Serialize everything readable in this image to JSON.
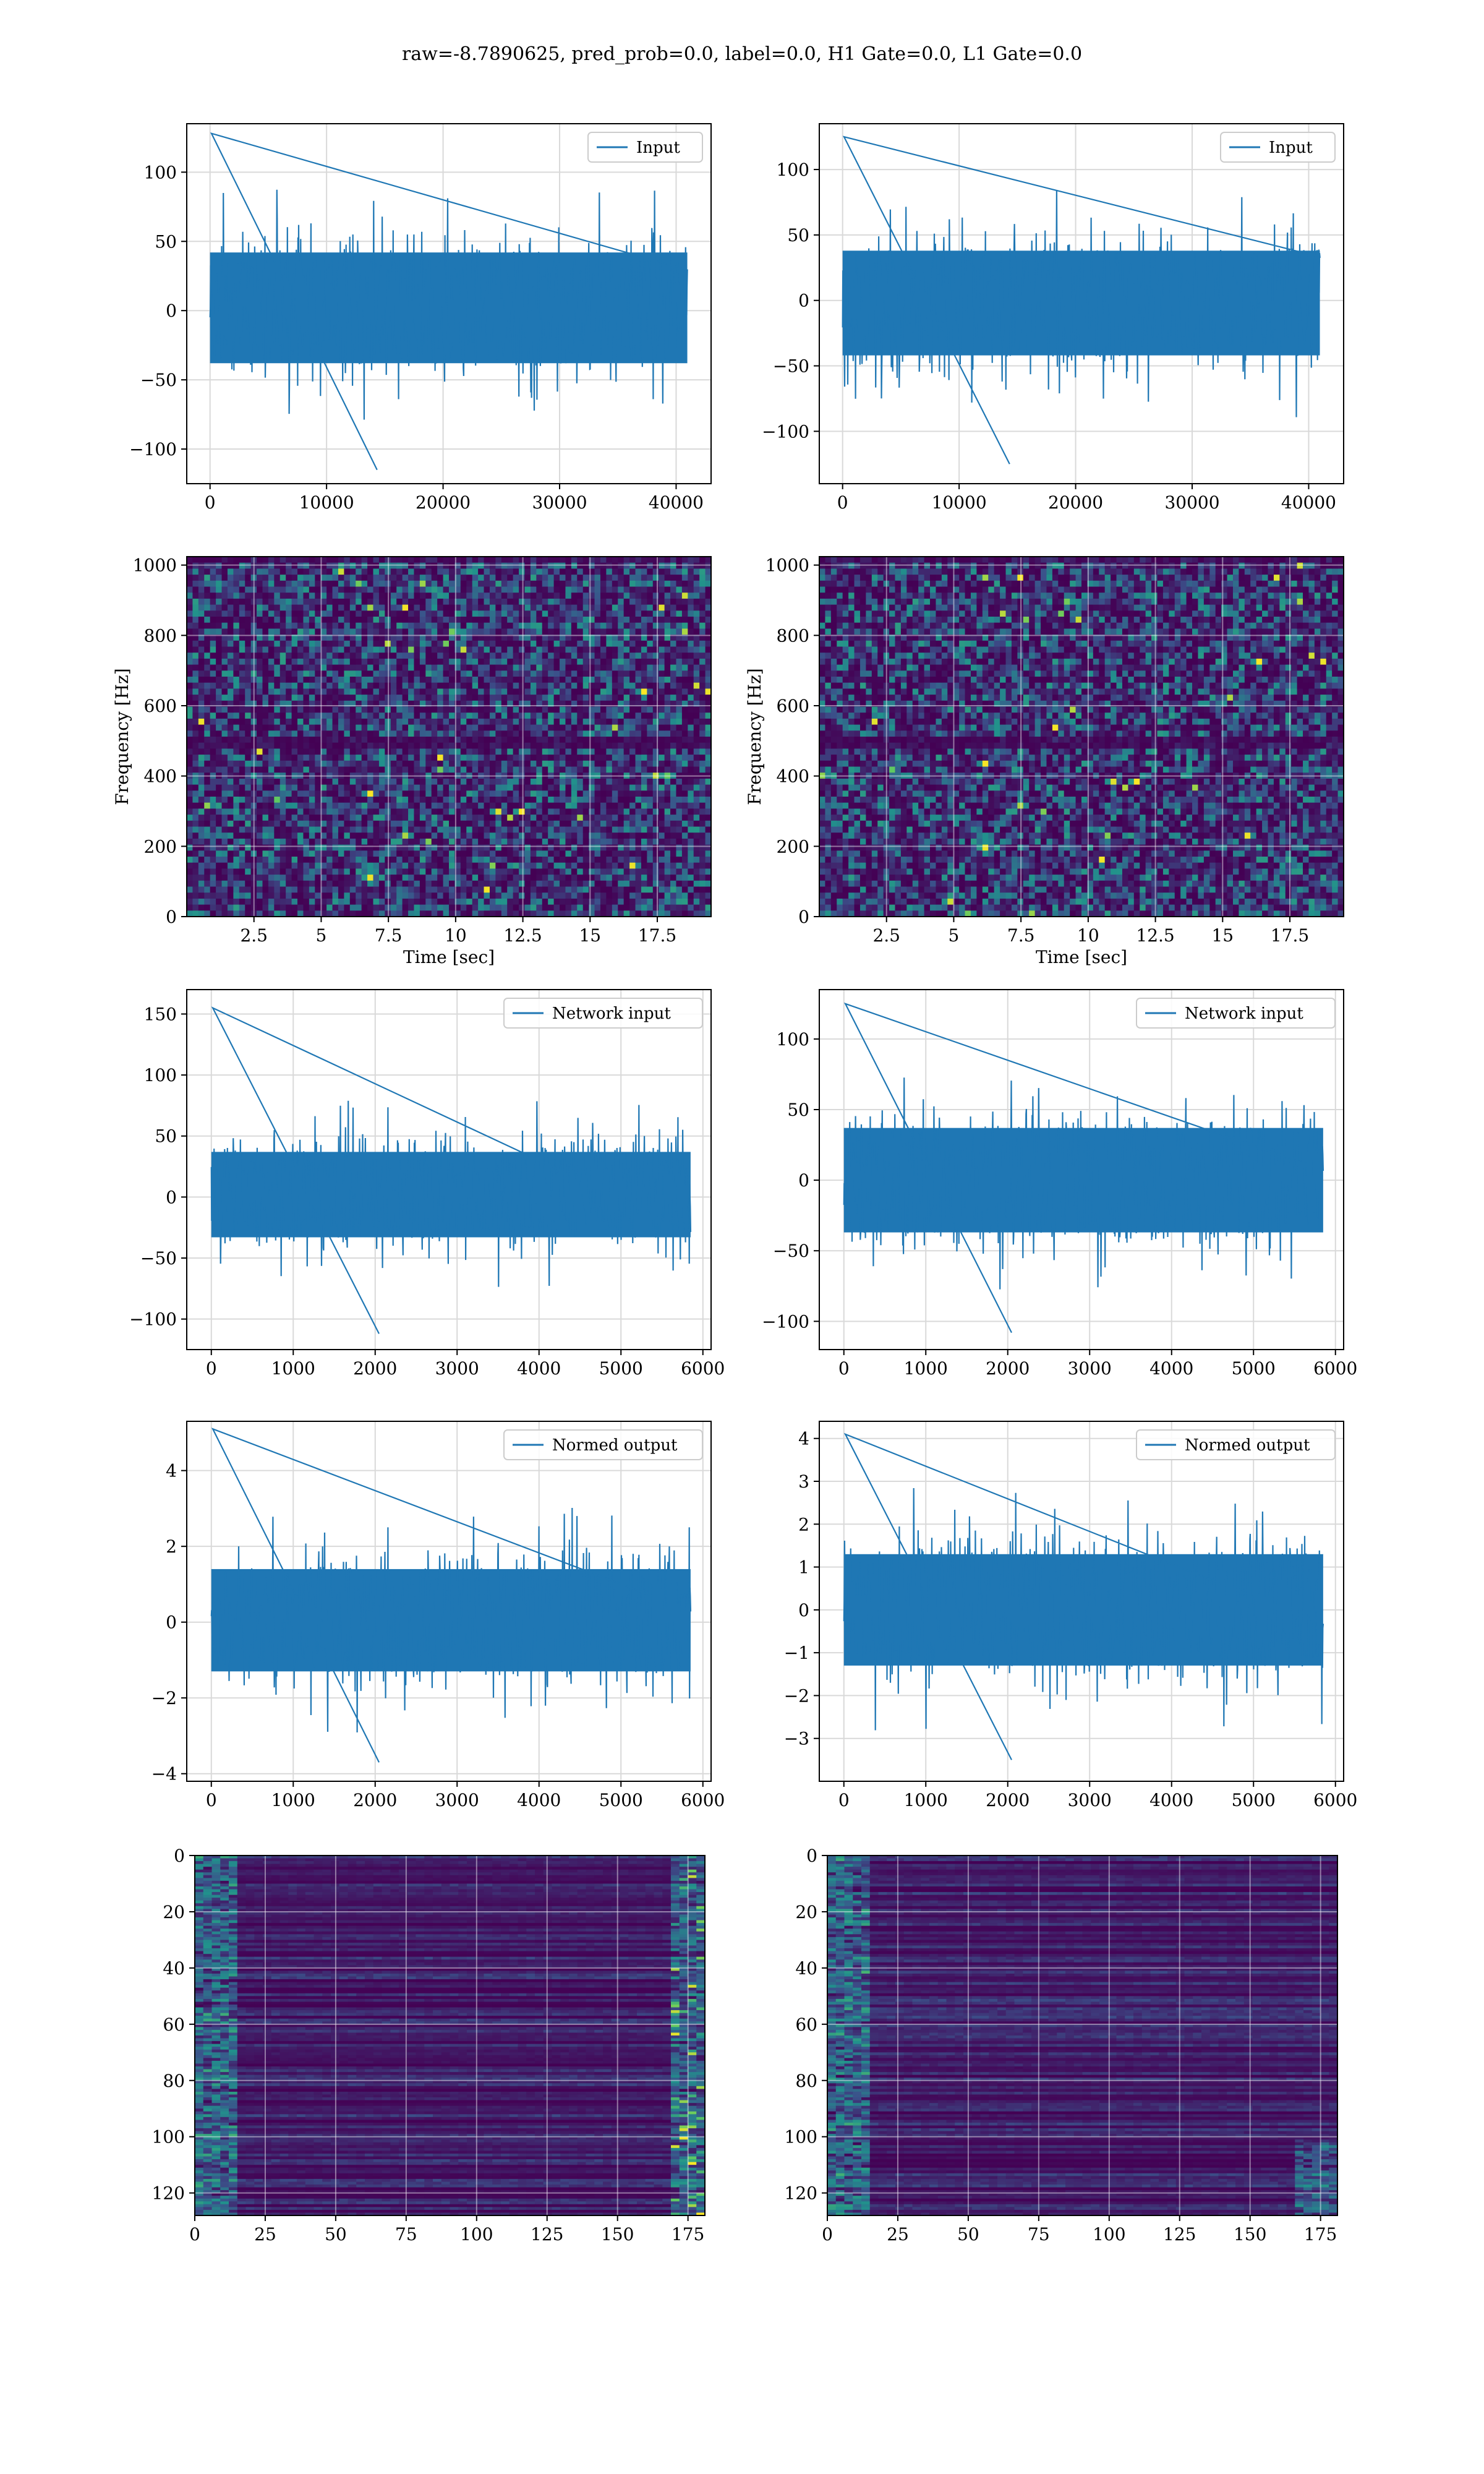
{
  "figure": {
    "title": "raw=-8.7890625, pred_prob=0.0, label=0.0, H1 Gate=0.0, L1 Gate=0.0"
  },
  "colors": {
    "series": "#1f77b4",
    "grid": "#d9d9d9",
    "axis": "#000000",
    "viridis_low": "#440154",
    "viridis_mid": "#21918c",
    "viridis_high": "#fde725"
  },
  "chart_data": [
    {
      "id": "input-h1",
      "type": "line",
      "title": "",
      "xlabel": "",
      "ylabel": "",
      "xlim": [
        -2000,
        43000
      ],
      "ylim": [
        -125,
        135
      ],
      "xticks": [
        0,
        10000,
        20000,
        30000,
        40000
      ],
      "yticks": [
        -100,
        -50,
        0,
        50,
        100
      ],
      "grid": true,
      "legend": "top-right",
      "series": [
        {
          "name": "Input",
          "x_range": [
            0,
            40960
          ],
          "band": [
            -38,
            42
          ],
          "extremes": [
            -115,
            128
          ]
        }
      ]
    },
    {
      "id": "input-l1",
      "type": "line",
      "title": "",
      "xlabel": "",
      "ylabel": "",
      "xlim": [
        -2000,
        43000
      ],
      "ylim": [
        -140,
        135
      ],
      "xticks": [
        0,
        10000,
        20000,
        30000,
        40000
      ],
      "yticks": [
        -100,
        -50,
        0,
        50,
        100
      ],
      "grid": true,
      "legend": "top-right",
      "series": [
        {
          "name": "Input",
          "x_range": [
            0,
            40960
          ],
          "band": [
            -42,
            38
          ],
          "extremes": [
            -125,
            125
          ]
        }
      ]
    },
    {
      "id": "spectrogram-h1",
      "type": "heatmap",
      "title": "",
      "xlabel": "Time [sec]",
      "ylabel": "Frequency [Hz]",
      "xlim": [
        0,
        19.5
      ],
      "ylim": [
        0,
        1024
      ],
      "xticks": [
        2.5,
        5.0,
        7.5,
        10.0,
        12.5,
        15.0,
        17.5
      ],
      "yticks": [
        0,
        200,
        400,
        600,
        800,
        1000
      ],
      "grid": true
    },
    {
      "id": "spectrogram-l1",
      "type": "heatmap",
      "title": "",
      "xlabel": "Time [sec]",
      "ylabel": "Frequency [Hz]",
      "xlim": [
        0,
        19.5
      ],
      "ylim": [
        0,
        1024
      ],
      "xticks": [
        2.5,
        5.0,
        7.5,
        10.0,
        12.5,
        15.0,
        17.5
      ],
      "yticks": [
        0,
        200,
        400,
        600,
        800,
        1000
      ],
      "grid": true
    },
    {
      "id": "network-input-h1",
      "type": "line",
      "title": "",
      "xlabel": "",
      "ylabel": "",
      "xlim": [
        -300,
        6100
      ],
      "ylim": [
        -125,
        170
      ],
      "xticks": [
        0,
        1000,
        2000,
        3000,
        4000,
        5000,
        6000
      ],
      "yticks": [
        -100,
        -50,
        0,
        50,
        100,
        150
      ],
      "grid": true,
      "legend": "top-right",
      "series": [
        {
          "name": "Network input",
          "x_range": [
            0,
            5850
          ],
          "band": [
            -33,
            37
          ],
          "extremes": [
            -112,
            155
          ]
        }
      ]
    },
    {
      "id": "network-input-l1",
      "type": "line",
      "title": "",
      "xlabel": "",
      "ylabel": "",
      "xlim": [
        -300,
        6100
      ],
      "ylim": [
        -120,
        135
      ],
      "xticks": [
        0,
        1000,
        2000,
        3000,
        4000,
        5000,
        6000
      ],
      "yticks": [
        -100,
        -50,
        0,
        50,
        100
      ],
      "grid": true,
      "legend": "top-right",
      "series": [
        {
          "name": "Network input",
          "x_range": [
            0,
            5850
          ],
          "band": [
            -37,
            37
          ],
          "extremes": [
            -108,
            125
          ]
        }
      ]
    },
    {
      "id": "normed-output-h1",
      "type": "line",
      "title": "",
      "xlabel": "",
      "ylabel": "",
      "xlim": [
        -300,
        6100
      ],
      "ylim": [
        -4.2,
        5.3
      ],
      "xticks": [
        0,
        1000,
        2000,
        3000,
        4000,
        5000,
        6000
      ],
      "yticks": [
        -4,
        -2,
        0,
        2,
        4
      ],
      "grid": true,
      "legend": "top-right",
      "series": [
        {
          "name": "Normed output",
          "x_range": [
            0,
            5850
          ],
          "band": [
            -1.3,
            1.4
          ],
          "extremes": [
            -3.7,
            5.1
          ]
        }
      ]
    },
    {
      "id": "normed-output-l1",
      "type": "line",
      "title": "",
      "xlabel": "",
      "ylabel": "",
      "xlim": [
        -300,
        6100
      ],
      "ylim": [
        -4.0,
        4.4
      ],
      "xticks": [
        0,
        1000,
        2000,
        3000,
        4000,
        5000,
        6000
      ],
      "yticks": [
        -3,
        -2,
        -1,
        0,
        1,
        2,
        3,
        4
      ],
      "grid": true,
      "legend": "top-right",
      "series": [
        {
          "name": "Normed output",
          "x_range": [
            0,
            5850
          ],
          "band": [
            -1.3,
            1.3
          ],
          "extremes": [
            -3.5,
            4.1
          ]
        }
      ]
    },
    {
      "id": "feature-map-h1",
      "type": "heatmap",
      "title": "",
      "xlabel": "",
      "ylabel": "",
      "xlim": [
        0,
        181
      ],
      "ylim": [
        0,
        128
      ],
      "xticks": [
        0,
        25,
        50,
        75,
        100,
        125,
        150,
        175
      ],
      "yticks": [
        0,
        20,
        40,
        60,
        80,
        100,
        120
      ],
      "grid": true
    },
    {
      "id": "feature-map-l1",
      "type": "heatmap",
      "title": "",
      "xlabel": "",
      "ylabel": "",
      "xlim": [
        0,
        181
      ],
      "ylim": [
        0,
        128
      ],
      "xticks": [
        0,
        25,
        50,
        75,
        100,
        125,
        150,
        175
      ],
      "yticks": [
        0,
        20,
        40,
        60,
        80,
        100,
        120
      ],
      "grid": true
    }
  ]
}
